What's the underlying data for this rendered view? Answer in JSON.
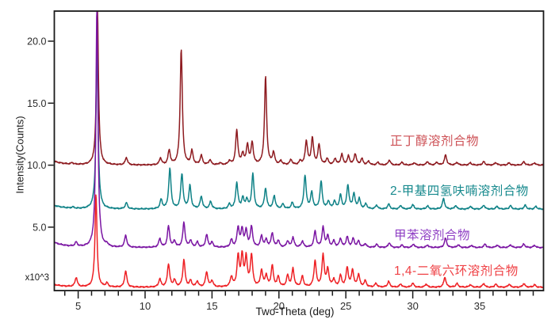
{
  "chart_data": {
    "type": "line",
    "title": "",
    "xlabel": "Two-Theta (deg)",
    "ylabel": "Intensity(Counts)",
    "y_multiplier": "x10^3",
    "xlim": [
      3.2,
      39.8
    ],
    "ylim": [
      -0.1,
      22.4
    ],
    "grid": false,
    "legend_position": "right-inline",
    "x_axis": {
      "major_ticks": [
        {
          "v": 5,
          "label": "5"
        },
        {
          "v": 10,
          "label": "10"
        },
        {
          "v": 15,
          "label": "15"
        },
        {
          "v": 20,
          "label": "20"
        },
        {
          "v": 25,
          "label": "25"
        },
        {
          "v": 30,
          "label": "30"
        },
        {
          "v": 35,
          "label": "35"
        }
      ],
      "minor_step": 1
    },
    "y_axis": {
      "major_ticks": [
        {
          "v": 5,
          "label": "5.0"
        },
        {
          "v": 10,
          "label": "10.0"
        },
        {
          "v": 15,
          "label": "15.0"
        },
        {
          "v": 20,
          "label": "20.0"
        }
      ]
    },
    "series": [
      {
        "name": "n-butanol-solvate",
        "label": "正丁醇溶剂合物",
        "color": "#8e1b20",
        "label_color": "#cd5156",
        "baseline": 10.0,
        "left_rise": 0.3,
        "peak_width": 0.1,
        "peaks": [
          [
            4.55,
            0.12
          ],
          [
            6.44,
            12.7,
            0.09
          ],
          [
            8.6,
            0.6
          ],
          [
            11.15,
            0.55
          ],
          [
            11.8,
            1.15
          ],
          [
            12.7,
            9.35,
            0.095
          ],
          [
            13.5,
            1.1
          ],
          [
            14.2,
            0.75
          ],
          [
            14.85,
            0.4
          ],
          [
            15.6,
            0.15
          ],
          [
            16.3,
            0.3
          ],
          [
            16.85,
            2.75
          ],
          [
            17.3,
            0.85
          ],
          [
            17.65,
            1.55
          ],
          [
            18.0,
            1.75
          ],
          [
            19.0,
            7.1,
            0.095
          ],
          [
            19.6,
            0.95
          ],
          [
            20.15,
            0.3
          ],
          [
            20.9,
            0.42
          ],
          [
            21.6,
            0.3
          ],
          [
            22.05,
            1.9
          ],
          [
            22.5,
            2.15
          ],
          [
            23.0,
            1.6
          ],
          [
            23.6,
            0.5
          ],
          [
            24.2,
            0.5
          ],
          [
            24.7,
            0.85
          ],
          [
            25.2,
            0.7
          ],
          [
            25.7,
            0.9
          ],
          [
            26.2,
            0.5
          ],
          [
            26.7,
            0.3
          ],
          [
            27.4,
            0.22
          ],
          [
            28.25,
            0.4
          ],
          [
            29.2,
            0.22
          ],
          [
            30.1,
            0.18
          ],
          [
            31.1,
            0.28
          ],
          [
            31.8,
            0.22
          ],
          [
            32.45,
            0.8
          ],
          [
            33.3,
            0.22
          ],
          [
            34.3,
            0.18
          ],
          [
            35.3,
            0.28
          ],
          [
            36.2,
            0.2
          ],
          [
            37.2,
            0.18
          ],
          [
            38.3,
            0.28
          ],
          [
            39.1,
            0.18
          ]
        ]
      },
      {
        "name": "2-methyltetrahydrofuran-solvate",
        "label": "2-甲基四氢呋喃溶剂合物",
        "color": "#0f8287",
        "label_color": "#16898d",
        "baseline": 6.45,
        "left_rise": 0.3,
        "peak_width": 0.1,
        "peaks": [
          [
            4.6,
            0.1
          ],
          [
            6.41,
            13.5,
            0.09
          ],
          [
            8.6,
            0.5
          ],
          [
            11.2,
            0.75
          ],
          [
            11.85,
            3.25
          ],
          [
            12.75,
            2.8
          ],
          [
            13.35,
            1.85
          ],
          [
            14.2,
            1.0
          ],
          [
            14.9,
            0.6
          ],
          [
            16.3,
            0.38
          ],
          [
            16.85,
            2.1
          ],
          [
            17.3,
            0.85
          ],
          [
            17.6,
            0.7
          ],
          [
            18.05,
            2.8
          ],
          [
            19.0,
            1.65
          ],
          [
            19.65,
            1.05
          ],
          [
            20.3,
            0.38
          ],
          [
            21.0,
            0.5
          ],
          [
            21.95,
            2.7
          ],
          [
            22.45,
            1.3
          ],
          [
            23.15,
            2.2
          ],
          [
            23.7,
            0.6
          ],
          [
            24.15,
            0.6
          ],
          [
            24.6,
            1.1
          ],
          [
            25.15,
            1.9
          ],
          [
            25.6,
            1.2
          ],
          [
            26.0,
            0.8
          ],
          [
            26.5,
            0.4
          ],
          [
            27.3,
            0.3
          ],
          [
            28.2,
            0.4
          ],
          [
            29.1,
            0.28
          ],
          [
            30.0,
            0.35
          ],
          [
            31.1,
            0.25
          ],
          [
            32.3,
            0.85
          ],
          [
            33.2,
            0.28
          ],
          [
            34.3,
            0.22
          ],
          [
            35.3,
            0.32
          ],
          [
            36.3,
            0.22
          ],
          [
            37.3,
            0.28
          ],
          [
            38.4,
            0.32
          ],
          [
            39.2,
            0.22
          ]
        ]
      },
      {
        "name": "toluene-solvate",
        "label": "甲苯溶剂合物",
        "color": "#7b16a3",
        "label_color": "#8f3fc4",
        "baseline": 3.35,
        "left_rise": 0.42,
        "peak_width": 0.1,
        "peaks": [
          [
            4.85,
            0.35
          ],
          [
            6.4,
            19.5,
            0.09
          ],
          [
            7.15,
            0.2
          ],
          [
            8.55,
            0.95
          ],
          [
            11.1,
            0.7
          ],
          [
            11.75,
            1.7
          ],
          [
            12.2,
            0.5
          ],
          [
            12.9,
            2.0
          ],
          [
            13.4,
            0.55
          ],
          [
            13.9,
            0.42
          ],
          [
            14.6,
            1.0
          ],
          [
            15.0,
            0.4
          ],
          [
            16.45,
            0.6
          ],
          [
            16.95,
            1.55
          ],
          [
            17.25,
            1.4
          ],
          [
            17.55,
            1.3
          ],
          [
            17.95,
            1.65
          ],
          [
            18.7,
            0.9
          ],
          [
            19.05,
            0.6
          ],
          [
            19.5,
            1.15
          ],
          [
            19.95,
            0.55
          ],
          [
            20.65,
            0.5
          ],
          [
            21.05,
            0.8
          ],
          [
            21.75,
            0.5
          ],
          [
            22.7,
            1.3
          ],
          [
            23.3,
            1.6
          ],
          [
            23.65,
            0.9
          ],
          [
            24.1,
            0.5
          ],
          [
            24.6,
            0.7
          ],
          [
            25.1,
            0.85
          ],
          [
            25.55,
            0.7
          ],
          [
            25.95,
            0.5
          ],
          [
            26.45,
            0.3
          ],
          [
            27.3,
            0.25
          ],
          [
            28.25,
            0.38
          ],
          [
            29.2,
            0.2
          ],
          [
            30.05,
            0.28
          ],
          [
            31.1,
            0.2
          ],
          [
            32.45,
            0.75
          ],
          [
            33.4,
            0.22
          ],
          [
            34.4,
            0.18
          ],
          [
            35.4,
            0.28
          ],
          [
            36.3,
            0.2
          ],
          [
            37.3,
            0.22
          ],
          [
            38.3,
            0.28
          ],
          [
            39.1,
            0.18
          ]
        ]
      },
      {
        "name": "1-4-dioxane-solvate",
        "label": "1,4-二氧六环溶剂合物",
        "color": "#ee2024",
        "label_color": "#ef4145",
        "baseline": 0.15,
        "left_rise": 0.22,
        "peak_width": 0.1,
        "peaks": [
          [
            4.85,
            0.75
          ],
          [
            6.33,
            7.5,
            0.09
          ],
          [
            7.15,
            0.3
          ],
          [
            8.55,
            1.3
          ],
          [
            11.1,
            0.65
          ],
          [
            11.75,
            1.85
          ],
          [
            12.2,
            0.55
          ],
          [
            12.9,
            2.2
          ],
          [
            13.4,
            0.5
          ],
          [
            13.9,
            0.45
          ],
          [
            14.6,
            1.2
          ],
          [
            15.0,
            0.5
          ],
          [
            16.45,
            0.8
          ],
          [
            16.95,
            2.4
          ],
          [
            17.25,
            2.45
          ],
          [
            17.55,
            2.3
          ],
          [
            17.95,
            2.55
          ],
          [
            18.7,
            1.3
          ],
          [
            19.05,
            0.9
          ],
          [
            19.5,
            1.7
          ],
          [
            19.95,
            0.8
          ],
          [
            20.65,
            0.9
          ],
          [
            21.05,
            1.45
          ],
          [
            21.75,
            0.85
          ],
          [
            22.7,
            2.1
          ],
          [
            23.3,
            2.55
          ],
          [
            23.65,
            1.4
          ],
          [
            24.1,
            0.6
          ],
          [
            24.6,
            0.9
          ],
          [
            25.1,
            1.55
          ],
          [
            25.5,
            1.35
          ],
          [
            25.95,
            1.0
          ],
          [
            26.45,
            0.5
          ],
          [
            27.25,
            0.3
          ],
          [
            28.2,
            0.45
          ],
          [
            29.1,
            0.25
          ],
          [
            30.0,
            0.32
          ],
          [
            31.0,
            0.25
          ],
          [
            32.4,
            0.8
          ],
          [
            33.3,
            0.3
          ],
          [
            34.3,
            0.2
          ],
          [
            35.3,
            0.3
          ],
          [
            36.2,
            0.25
          ],
          [
            37.2,
            0.25
          ],
          [
            38.3,
            0.3
          ],
          [
            39.1,
            0.2
          ]
        ]
      }
    ]
  }
}
